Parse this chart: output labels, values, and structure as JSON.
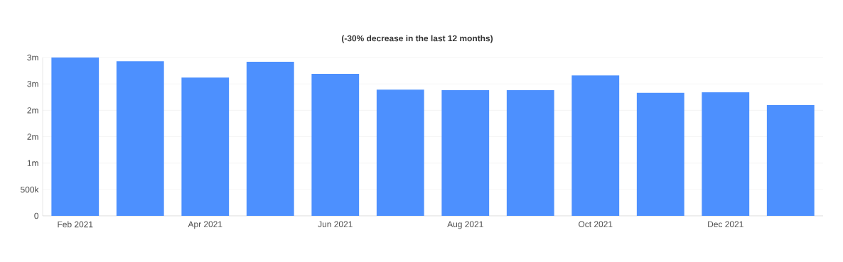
{
  "chart_data": {
    "type": "bar",
    "title": "(-30% decrease in the last 12 months)",
    "categories": [
      "Feb 2021",
      null,
      "Apr 2021",
      null,
      "Jun 2021",
      null,
      "Aug 2021",
      null,
      "Oct 2021",
      null,
      "Dec 2021",
      null
    ],
    "values": [
      3000000,
      2930000,
      2620000,
      2920000,
      2690000,
      2390000,
      2380000,
      2380000,
      2660000,
      2330000,
      2340000,
      2100000
    ],
    "color": "#4d90fe",
    "ylim": [
      0,
      3000000
    ],
    "yticks": [
      0,
      {
        "value": 500000,
        "label": "500k"
      },
      {
        "value": 1000000,
        "label": "1m"
      },
      {
        "value": 1500000,
        "label": "2m"
      },
      {
        "value": 2000000,
        "label": "2m"
      },
      {
        "value": 2500000,
        "label": "3m"
      },
      {
        "value": 3000000,
        "label": "3m"
      }
    ],
    "grid": "y"
  }
}
